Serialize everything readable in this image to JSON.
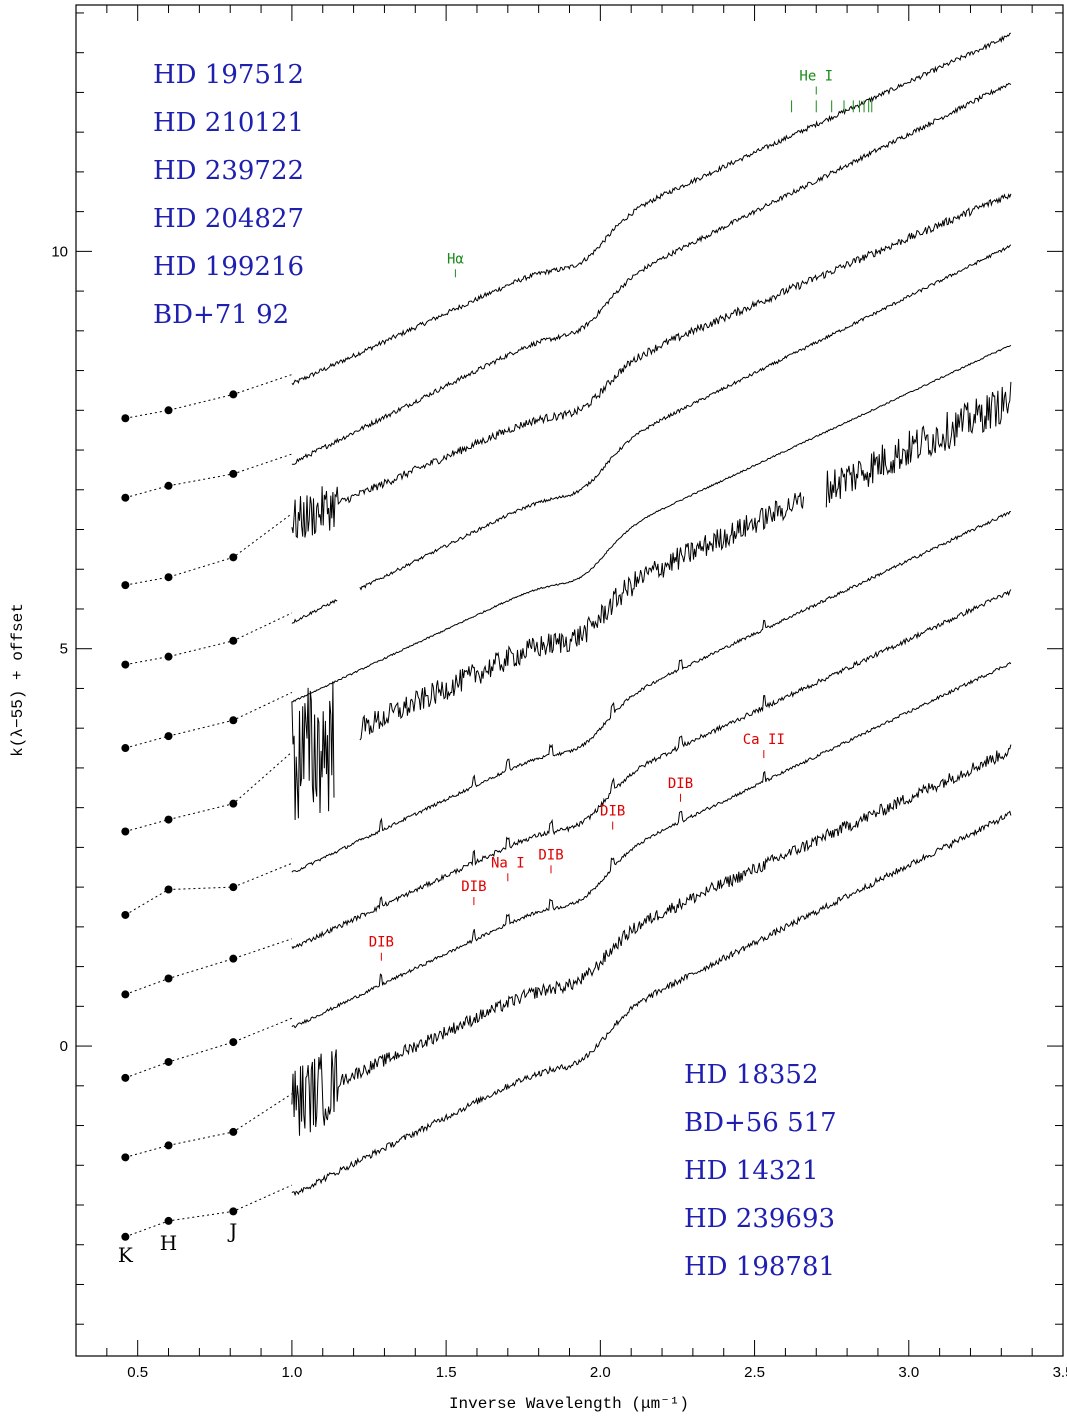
{
  "chart_data": {
    "type": "line",
    "xlabel": "Inverse Wavelength (μm⁻¹)",
    "ylabel": "k(λ−55) + offset",
    "xlim": [
      0.3,
      3.5
    ],
    "ylim": [
      -3.9,
      13.1
    ],
    "x_ticks": [
      "0.5",
      "1.0",
      "1.5",
      "2.0",
      "2.5",
      "3.0",
      "3.5"
    ],
    "y_ticks": [
      "0",
      "5",
      "10"
    ],
    "grid": false,
    "band_labels": [
      {
        "text": "K",
        "x": 0.46
      },
      {
        "text": "H",
        "x": 0.6
      },
      {
        "text": "J",
        "x": 0.81
      }
    ],
    "legend_top_left": [
      "HD 197512",
      "HD 210121",
      "HD 239722",
      "HD 204827",
      "HD 199216",
      "BD+71 92"
    ],
    "legend_bottom_right": [
      "HD 18352",
      "BD+56 517",
      "HD 14321",
      "HD 239693",
      "HD 198781"
    ],
    "series": [
      {
        "K": 7.9,
        "H": 8.0,
        "J": 8.2,
        "spec_start": 8.45,
        "spec_end": 12.6,
        "noise": 0.03,
        "gaps": [],
        "noisy_start": false
      },
      {
        "K": 6.9,
        "H": 7.05,
        "J": 7.2,
        "spec_start": 7.45,
        "spec_end": 12.0,
        "noise": 0.03,
        "gaps": [],
        "noisy_start": false
      },
      {
        "K": 5.8,
        "H": 5.9,
        "J": 6.15,
        "spec_start": 6.7,
        "spec_end": 10.6,
        "noise": 0.05,
        "gaps": [],
        "noisy_start": true
      },
      {
        "K": 4.8,
        "H": 4.9,
        "J": 5.1,
        "spec_start": 5.45,
        "spec_end": 9.95,
        "noise": 0.02,
        "gaps": [
          [
            1.15,
            1.22
          ]
        ],
        "noisy_start": false
      },
      {
        "K": 3.75,
        "H": 3.9,
        "J": 4.1,
        "spec_start": 4.45,
        "spec_end": 8.7,
        "noise": 0.01,
        "gaps": [],
        "noisy_start": false
      },
      {
        "K": 2.7,
        "H": 2.85,
        "J": 3.05,
        "spec_start": 3.7,
        "spec_end": 8.0,
        "noise": 0.15,
        "gaps": [
          [
            1.14,
            1.22
          ],
          [
            2.66,
            2.73
          ]
        ],
        "noisy_start": true
      },
      {
        "K": 1.65,
        "H": 1.97,
        "J": 2.0,
        "spec_start": 2.3,
        "spec_end": 6.6,
        "noise": 0.02,
        "gaps": [],
        "noisy_start": false
      },
      {
        "K": 0.65,
        "H": 0.85,
        "J": 1.1,
        "spec_start": 1.35,
        "spec_end": 5.6,
        "noise": 0.03,
        "gaps": [],
        "noisy_start": false
      },
      {
        "K": -0.4,
        "H": -0.2,
        "J": 0.05,
        "spec_start": 0.35,
        "spec_end": 4.7,
        "noise": 0.02,
        "gaps": [],
        "noisy_start": false
      },
      {
        "K": -1.4,
        "H": -1.25,
        "J": -1.08,
        "spec_start": -0.6,
        "spec_end": 3.6,
        "noise": 0.08,
        "gaps": [],
        "noisy_start": true
      },
      {
        "K": -2.4,
        "H": -2.2,
        "J": -2.08,
        "spec_start": -1.75,
        "spec_end": 2.8,
        "noise": 0.04,
        "gaps": [],
        "noisy_start": false
      }
    ],
    "annotations": [
      {
        "text": "Hα",
        "x": 1.53,
        "y": 9.85,
        "color": "#1a8a1a"
      },
      {
        "text": "He I",
        "x": 2.7,
        "y": 12.15,
        "color": "#1a8a1a"
      },
      {
        "text": "DIB",
        "x": 1.29,
        "y": 1.25,
        "color": "#e00000"
      },
      {
        "text": "DIB",
        "x": 1.59,
        "y": 1.95,
        "color": "#e00000"
      },
      {
        "text": "Na I",
        "x": 1.7,
        "y": 2.25,
        "color": "#e00000"
      },
      {
        "text": "DIB",
        "x": 1.84,
        "y": 2.35,
        "color": "#e00000"
      },
      {
        "text": "DIB",
        "x": 2.04,
        "y": 2.9,
        "color": "#e00000"
      },
      {
        "text": "DIB",
        "x": 2.26,
        "y": 3.25,
        "color": "#e00000"
      },
      {
        "text": "Ca II",
        "x": 2.53,
        "y": 3.8,
        "color": "#e00000"
      }
    ],
    "he_ticks": [
      2.62,
      2.7,
      2.75,
      2.79,
      2.82,
      2.84,
      2.855,
      2.87,
      2.88
    ],
    "colors": {
      "star_labels": "#2020b0",
      "lines": "#000000"
    }
  }
}
